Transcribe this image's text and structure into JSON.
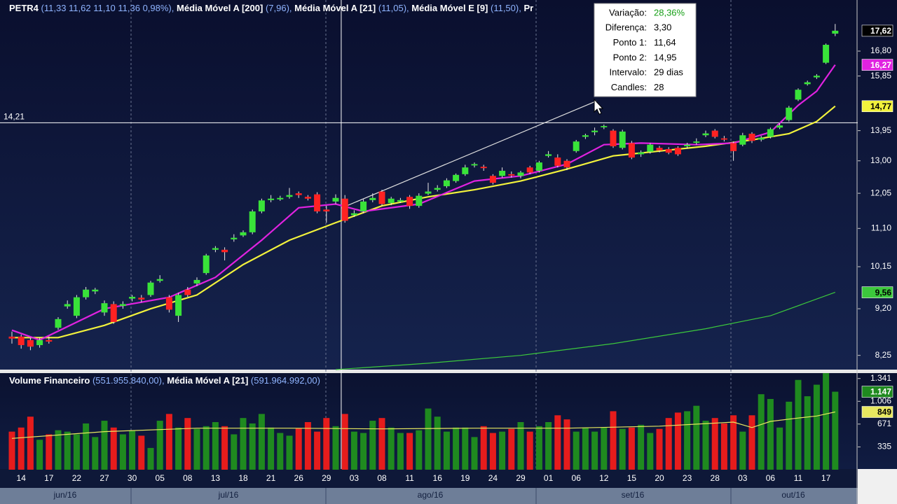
{
  "chart_data": {
    "type": "candlestick",
    "header_tail": "Pr",
    "log": true,
    "ylim": [
      7.98,
      18.87
    ],
    "yticks": [
      {
        "value": 16.8,
        "label": "16,80"
      },
      {
        "value": 15.85,
        "label": "15,85"
      },
      {
        "value": 13.95,
        "label": "13,95"
      },
      {
        "value": 13.0,
        "label": "13,00"
      },
      {
        "value": 12.05,
        "label": "12,05"
      },
      {
        "value": 11.1,
        "label": "11,10"
      },
      {
        "value": 10.15,
        "label": "10,15"
      },
      {
        "value": 9.2,
        "label": "9,20"
      },
      {
        "value": 8.25,
        "label": "8,25"
      }
    ],
    "categories": [
      null,
      "14",
      null,
      null,
      "17",
      null,
      null,
      "22",
      null,
      null,
      "27",
      null,
      null,
      "30",
      null,
      null,
      "05",
      null,
      null,
      "08",
      null,
      null,
      "13",
      null,
      null,
      "18",
      null,
      null,
      "21",
      null,
      null,
      "26",
      null,
      null,
      "29",
      null,
      null,
      "03",
      null,
      null,
      "08",
      null,
      null,
      "11",
      null,
      null,
      "16",
      null,
      null,
      "19",
      null,
      null,
      "24",
      null,
      null,
      "29",
      null,
      null,
      "01",
      null,
      null,
      "06",
      null,
      null,
      "12",
      null,
      null,
      "15",
      null,
      null,
      "20",
      null,
      null,
      "23",
      null,
      null,
      "28",
      null,
      null,
      "03",
      null,
      null,
      "06",
      null,
      null,
      "11",
      null,
      null,
      "17",
      null
    ],
    "months": [
      "jun/16",
      "jul/16",
      "ago/16",
      "set/16",
      "out/16"
    ],
    "ohlc": {
      "name": "PETR4",
      "header_value": "(11,33  11,62  11,10  11,36  0,98%),",
      "up_color": "#39e339",
      "down_color": "#ff2222",
      "last_label": "17,62",
      "open": [
        8.62,
        8.62,
        8.55,
        8.45,
        8.55,
        8.8,
        9.25,
        9.05,
        9.45,
        9.58,
        9.12,
        9.3,
        9.26,
        9.42,
        9.44,
        9.5,
        9.82,
        9.45,
        9.05,
        9.62,
        9.76,
        10.0,
        10.56,
        10.56,
        10.82,
        10.92,
        11.0,
        11.55,
        11.86,
        11.88,
        11.95,
        12.05,
        11.95,
        12.02,
        11.6,
        11.82,
        11.9,
        11.45,
        11.55,
        11.86,
        12.1,
        11.78,
        11.82,
        11.95,
        11.7,
        12.04,
        12.15,
        12.25,
        12.4,
        12.6,
        12.86,
        12.82,
        12.55,
        12.55,
        12.6,
        12.55,
        12.8,
        12.7,
        13.15,
        13.1,
        13.0,
        13.3,
        13.75,
        13.9,
        14.06,
        13.95,
        13.4,
        13.55,
        13.2,
        13.28,
        13.4,
        13.36,
        13.4,
        13.45,
        13.56,
        13.8,
        13.95,
        13.7,
        13.55,
        13.5,
        13.85,
        13.66,
        13.75,
        14.05,
        14.3,
        15.0,
        15.55,
        15.8,
        16.35,
        17.5
      ],
      "high": [
        8.72,
        8.66,
        8.6,
        8.6,
        8.62,
        9.02,
        9.38,
        9.5,
        9.68,
        9.66,
        9.38,
        9.36,
        9.36,
        9.5,
        9.5,
        9.82,
        9.95,
        9.5,
        9.55,
        9.68,
        9.9,
        10.46,
        10.65,
        10.62,
        10.95,
        11.05,
        11.6,
        11.9,
        12.0,
        11.98,
        12.2,
        12.1,
        12.0,
        12.08,
        11.7,
        12.02,
        12.0,
        11.58,
        11.88,
        12.05,
        12.15,
        11.95,
        11.92,
        12.0,
        12.05,
        12.35,
        12.28,
        12.48,
        12.62,
        12.88,
        12.95,
        12.88,
        12.6,
        12.8,
        12.68,
        12.7,
        12.85,
        13.0,
        13.3,
        13.2,
        13.05,
        13.65,
        13.85,
        14.05,
        14.15,
        14.0,
        13.98,
        13.62,
        13.32,
        13.55,
        13.46,
        13.42,
        13.45,
        13.56,
        13.7,
        13.95,
        14.0,
        13.78,
        13.6,
        13.88,
        13.9,
        13.78,
        14.05,
        14.2,
        14.78,
        15.4,
        15.68,
        15.92,
        17.1,
        17.9
      ],
      "low": [
        8.48,
        8.38,
        8.35,
        8.4,
        8.48,
        8.76,
        9.2,
        9.0,
        9.4,
        9.52,
        9.05,
        8.88,
        9.2,
        9.36,
        9.34,
        9.46,
        9.78,
        9.12,
        8.92,
        9.46,
        9.7,
        9.96,
        10.5,
        10.3,
        10.76,
        10.88,
        10.95,
        11.5,
        11.8,
        11.84,
        11.9,
        11.92,
        11.85,
        11.5,
        11.25,
        11.75,
        11.25,
        11.4,
        11.5,
        11.8,
        11.7,
        11.72,
        11.78,
        11.62,
        11.65,
        12.0,
        12.1,
        12.2,
        12.35,
        12.55,
        12.8,
        12.7,
        12.3,
        12.5,
        12.5,
        12.48,
        12.6,
        12.65,
        13.1,
        12.8,
        12.72,
        13.25,
        13.68,
        13.8,
        14.0,
        13.4,
        13.35,
        13.05,
        13.12,
        13.22,
        13.26,
        13.2,
        13.15,
        13.38,
        13.5,
        13.74,
        13.7,
        13.6,
        13.0,
        13.45,
        13.55,
        13.6,
        13.7,
        14.0,
        14.25,
        14.95,
        15.5,
        15.74,
        16.3,
        17.4
      ],
      "close": [
        8.58,
        8.45,
        8.42,
        8.55,
        8.52,
        8.98,
        9.3,
        9.45,
        9.62,
        9.62,
        9.32,
        8.92,
        9.3,
        9.46,
        9.4,
        9.78,
        9.86,
        9.18,
        9.5,
        9.5,
        9.84,
        10.42,
        10.6,
        10.5,
        10.86,
        11.0,
        11.55,
        11.85,
        11.9,
        11.92,
        12.0,
        12.0,
        11.9,
        11.55,
        11.55,
        11.92,
        11.3,
        11.5,
        11.82,
        11.92,
        11.75,
        11.9,
        11.86,
        11.7,
        11.98,
        12.1,
        12.2,
        12.42,
        12.58,
        12.8,
        12.9,
        12.78,
        12.35,
        12.7,
        12.56,
        12.65,
        12.65,
        12.95,
        13.2,
        12.85,
        12.8,
        13.6,
        13.8,
        13.95,
        14.1,
        13.45,
        13.92,
        13.1,
        13.26,
        13.5,
        13.32,
        13.25,
        13.2,
        13.5,
        13.6,
        13.86,
        13.75,
        13.66,
        13.3,
        13.8,
        13.62,
        13.72,
        14.0,
        14.12,
        14.72,
        15.35,
        15.62,
        15.86,
        17.05,
        17.62
      ]
    },
    "lines": [
      {
        "name": "Média Móvel A [200]",
        "header_value": "(7,96),",
        "color": "#3cc83c",
        "last_label": "9,56",
        "x": [
          35,
          45,
          55,
          65,
          75,
          82,
          89
        ],
        "values": [
          7.98,
          8.1,
          8.25,
          8.48,
          8.78,
          9.05,
          9.56
        ]
      },
      {
        "name": "Média Móvel A [21]",
        "header_value": "(11,05),",
        "color": "#f2f23c",
        "last_label": "14,77",
        "x": [
          0,
          5,
          10,
          15,
          20,
          25,
          30,
          35,
          40,
          45,
          50,
          55,
          60,
          65,
          70,
          75,
          80,
          84,
          87,
          89
        ],
        "values": [
          8.6,
          8.6,
          8.85,
          9.2,
          9.5,
          10.2,
          10.8,
          11.25,
          11.7,
          11.95,
          12.15,
          12.4,
          12.75,
          13.15,
          13.3,
          13.45,
          13.65,
          13.85,
          14.25,
          14.77
        ]
      },
      {
        "name": "Média Móvel E [9]",
        "header_value": "(11,50),",
        "color": "#e022e0",
        "last_label": "16,27",
        "x": [
          0,
          3,
          10,
          17,
          22,
          27,
          31,
          35,
          38,
          44,
          50,
          55,
          60,
          64,
          68,
          74,
          78,
          82,
          85,
          87,
          89
        ],
        "values": [
          8.75,
          8.55,
          9.2,
          9.45,
          9.9,
          10.8,
          11.65,
          11.75,
          11.55,
          11.75,
          12.4,
          12.55,
          12.9,
          13.5,
          13.55,
          13.5,
          13.55,
          13.9,
          14.8,
          15.3,
          16.27
        ]
      }
    ],
    "crosshair": {
      "value": 14.21,
      "label": "14,21"
    },
    "trendline": {
      "x": [
        35.6,
        63.2
      ],
      "values": [
        11.64,
        14.95
      ]
    },
    "tooltip": {
      "rows": [
        [
          "Variação:",
          "28,36%"
        ],
        [
          "Diferença:",
          "3,30"
        ],
        [
          "Ponto 1:",
          "11,64"
        ],
        [
          "Ponto 2:",
          "14,95"
        ],
        [
          "Intervalo:",
          "29 dias"
        ],
        [
          "Candles:",
          "28"
        ]
      ]
    },
    "volume": {
      "name": "Volume Financeiro",
      "header_value": "(551.955.840,00),",
      "up_color": "#1f8a1f",
      "down_color": "#e61c1c",
      "last_label": "1.147",
      "ylim": [
        0,
        1400
      ],
      "yticks": [
        {
          "value": 1341,
          "label": "1.341"
        },
        {
          "value": 1006,
          "label": "1.006"
        },
        671,
        335
      ],
      "values": [
        560,
        620,
        780,
        440,
        520,
        580,
        560,
        520,
        680,
        480,
        720,
        620,
        520,
        580,
        500,
        320,
        720,
        820,
        620,
        760,
        600,
        640,
        700,
        640,
        520,
        760,
        680,
        820,
        620,
        540,
        500,
        610,
        700,
        560,
        760,
        640,
        820,
        560,
        540,
        720,
        760,
        620,
        540,
        540,
        580,
        900,
        780,
        560,
        620,
        620,
        480,
        640,
        540,
        560,
        600,
        700,
        560,
        640,
        700,
        800,
        740,
        560,
        620,
        560,
        620,
        860,
        600,
        620,
        660,
        540,
        600,
        760,
        840,
        860,
        940,
        720,
        760,
        680,
        800,
        560,
        800,
        1110,
        1040,
        620,
        1000,
        1320,
        1080,
        1250,
        1420,
        1147
      ],
      "ma": {
        "name": "Média Móvel A [21]",
        "header_value": "(591.964.992,00)",
        "color": "#e8e860",
        "last_label": "849",
        "x": [
          0,
          10,
          20,
          30,
          40,
          50,
          60,
          70,
          78,
          80,
          82,
          85,
          87,
          89
        ],
        "values": [
          460,
          560,
          610,
          610,
          600,
          610,
          610,
          640,
          700,
          620,
          710,
          760,
          790,
          849
        ]
      }
    }
  }
}
